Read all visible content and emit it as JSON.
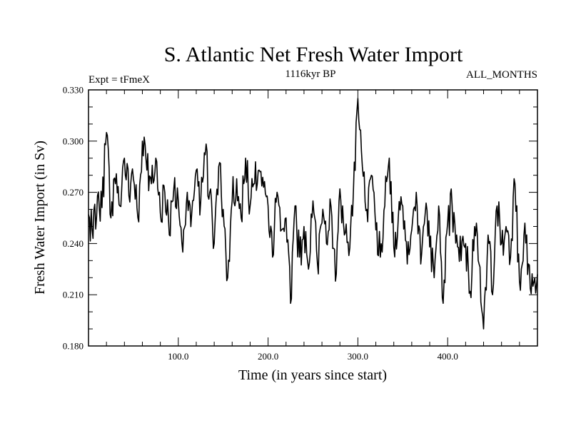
{
  "chart_data": {
    "type": "line",
    "title": "S. Atlantic Net Fresh Water Import",
    "subtitle_left": "Expt = tFmeX",
    "subtitle_center": "1116kyr BP",
    "subtitle_right": "ALL_MONTHS",
    "xlabel": "Time (in years since start)",
    "ylabel": "Fresh Water Import (in Sv)",
    "xlim": [
      0,
      500
    ],
    "ylim": [
      0.18,
      0.33
    ],
    "x_ticks": [
      100,
      200,
      300,
      400
    ],
    "x_tick_labels": [
      "100.0",
      "200.0",
      "300.0",
      "400.0"
    ],
    "y_ticks": [
      0.18,
      0.21,
      0.24,
      0.27,
      0.3,
      0.33
    ],
    "y_tick_labels": [
      "0.180",
      "0.210",
      "0.240",
      "0.270",
      "0.300",
      "0.330"
    ],
    "grid": false,
    "series": [
      {
        "name": "Fresh Water Import",
        "color": "#000000",
        "x": [
          0,
          5,
          10,
          15,
          20,
          25,
          30,
          35,
          40,
          45,
          50,
          55,
          60,
          65,
          70,
          75,
          80,
          85,
          90,
          95,
          100,
          105,
          110,
          115,
          120,
          125,
          130,
          135,
          140,
          145,
          150,
          155,
          160,
          165,
          170,
          175,
          180,
          185,
          190,
          195,
          200,
          205,
          210,
          215,
          220,
          225,
          230,
          235,
          240,
          245,
          250,
          255,
          260,
          265,
          270,
          275,
          280,
          285,
          290,
          295,
          300,
          305,
          310,
          315,
          320,
          325,
          330,
          335,
          340,
          345,
          350,
          355,
          360,
          365,
          370,
          375,
          380,
          385,
          390,
          395,
          400,
          405,
          410,
          415,
          420,
          425,
          430,
          435,
          440,
          445,
          450,
          455,
          460,
          465,
          470,
          475,
          480,
          485,
          490,
          495,
          500
        ],
        "values": [
          0.257,
          0.243,
          0.268,
          0.261,
          0.305,
          0.255,
          0.275,
          0.262,
          0.29,
          0.268,
          0.278,
          0.255,
          0.3,
          0.283,
          0.275,
          0.29,
          0.258,
          0.27,
          0.245,
          0.272,
          0.265,
          0.235,
          0.27,
          0.258,
          0.283,
          0.265,
          0.292,
          0.27,
          0.24,
          0.285,
          0.26,
          0.22,
          0.265,
          0.278,
          0.255,
          0.29,
          0.262,
          0.275,
          0.283,
          0.273,
          0.262,
          0.232,
          0.27,
          0.248,
          0.255,
          0.205,
          0.262,
          0.232,
          0.25,
          0.225,
          0.265,
          0.228,
          0.252,
          0.24,
          0.262,
          0.218,
          0.272,
          0.245,
          0.233,
          0.27,
          0.325,
          0.285,
          0.26,
          0.28,
          0.248,
          0.232,
          0.262,
          0.29,
          0.238,
          0.255,
          0.262,
          0.228,
          0.248,
          0.27,
          0.228,
          0.258,
          0.238,
          0.22,
          0.262,
          0.205,
          0.252,
          0.262,
          0.245,
          0.23,
          0.24,
          0.212,
          0.25,
          0.228,
          0.19,
          0.245,
          0.21,
          0.262,
          0.24,
          0.25,
          0.232,
          0.275,
          0.218,
          0.245,
          0.228,
          0.215,
          0.222
        ]
      }
    ]
  }
}
